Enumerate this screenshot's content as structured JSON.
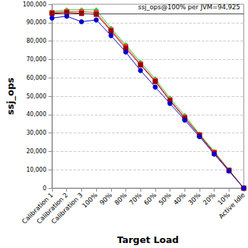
{
  "chart_data": {
    "type": "line",
    "categories": [
      "Calibration 1",
      "Calibration 2",
      "Calibration 3",
      "100%",
      "90%",
      "80%",
      "70%",
      "60%",
      "50%",
      "40%",
      "30%",
      "20%",
      "10%",
      "Active Idle"
    ],
    "x_label": "Target Load",
    "y_label": "ssj_ops",
    "series": [
      {
        "color": "#33cc33",
        "marker": "diamond",
        "values": [
          96000,
          97000,
          97000,
          97000,
          87000,
          78000,
          68500,
          59500,
          49000,
          39500,
          29500,
          20000,
          10000,
          0
        ]
      },
      {
        "color": "#ee3333",
        "marker": "square",
        "values": [
          95500,
          96000,
          96000,
          95500,
          86000,
          77000,
          67500,
          58500,
          48000,
          38500,
          29000,
          19500,
          9800,
          0
        ]
      },
      {
        "color": "#990000",
        "marker": "square",
        "values": [
          95000,
          95500,
          95000,
          94500,
          85500,
          76000,
          67000,
          58000,
          47500,
          38000,
          28800,
          19000,
          9600,
          0
        ]
      },
      {
        "color": "#0000cc",
        "marker": "circle",
        "values": [
          92500,
          93500,
          90500,
          91500,
          83000,
          74000,
          64000,
          55000,
          46000,
          37000,
          28000,
          18500,
          9300,
          0
        ]
      }
    ],
    "annotations": [
      {
        "text": "ssj_ops@100% per JVM=94,925",
        "value": 94925
      }
    ],
    "ylim": [
      0,
      100000
    ],
    "yticks": [
      0,
      {
        "value": 10000,
        "label": "10,000"
      },
      {
        "value": 20000,
        "label": "20,000"
      },
      {
        "value": 30000,
        "label": "30,000"
      },
      {
        "value": 40000,
        "label": "40,000"
      },
      {
        "value": 50000,
        "label": "50,000"
      },
      {
        "value": 60000,
        "label": "60,000"
      },
      {
        "value": 70000,
        "label": "70,000"
      },
      {
        "value": 80000,
        "label": "80,000"
      },
      {
        "value": 90000,
        "label": "90,000"
      },
      {
        "value": 100000,
        "label": "100,000"
      }
    ],
    "grid": true
  }
}
